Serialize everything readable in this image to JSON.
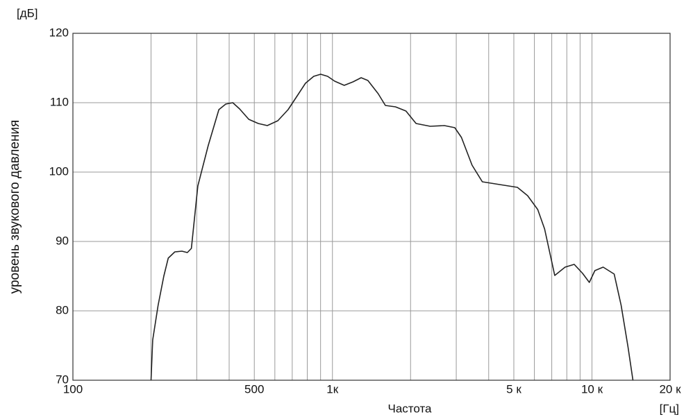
{
  "chart_data": {
    "type": "line",
    "x_label": "Частота",
    "x_unit": "[Гц]",
    "y_label": "уровень звукового давления",
    "y_unit": "[дБ]",
    "log_x": true,
    "grid": true,
    "xlim": [
      100,
      20000
    ],
    "ylim": [
      70,
      120
    ],
    "xticks": [
      100,
      500,
      {
        "value": 1000,
        "label": "1к"
      },
      {
        "value": 5000,
        "label": "5 к"
      },
      {
        "value": 10000,
        "label": "10 к"
      },
      {
        "value": 20000,
        "label": "20 к"
      }
    ],
    "yticks": [
      70,
      80,
      90,
      100,
      110,
      120
    ],
    "x_grid_lines": [
      200,
      300,
      400,
      500,
      600,
      700,
      800,
      900,
      1000,
      2000,
      3000,
      4000,
      5000,
      6000,
      7000,
      8000,
      9000,
      10000
    ],
    "series": [
      {
        "color": "#222222",
        "x": [
          200,
          203,
          213,
          224,
          233,
          247,
          263,
          276,
          286,
          303,
          332,
          365,
          388,
          413,
          439,
          476,
          518,
          561,
          616,
          675,
          732,
          787,
          847,
          901,
          958,
          1020,
          1110,
          1200,
          1290,
          1370,
          1500,
          1600,
          1750,
          1920,
          2100,
          2380,
          2700,
          2960,
          3140,
          3450,
          3780,
          4410,
          5160,
          5650,
          6180,
          6570,
          7190,
          7880,
          8540,
          9200,
          9770,
          10260,
          11040,
          12180,
          12950,
          13770,
          14380
        ],
        "values": [
          70,
          75.8,
          80.8,
          85,
          87.6,
          88.5,
          88.6,
          88.4,
          89,
          98,
          103.8,
          109,
          109.8,
          110,
          109.1,
          107.6,
          107,
          106.7,
          107.4,
          109,
          111,
          112.8,
          113.8,
          114.1,
          113.8,
          113.1,
          112.5,
          113,
          113.6,
          113.2,
          111.3,
          109.6,
          109.4,
          108.8,
          107,
          106.6,
          106.7,
          106.4,
          105,
          101,
          98.6,
          98.2,
          97.8,
          96.6,
          94.6,
          91.8,
          85.1,
          86.3,
          86.7,
          85.4,
          84.1,
          85.8,
          86.3,
          85.3,
          80.8,
          74.8,
          70
        ]
      }
    ]
  }
}
